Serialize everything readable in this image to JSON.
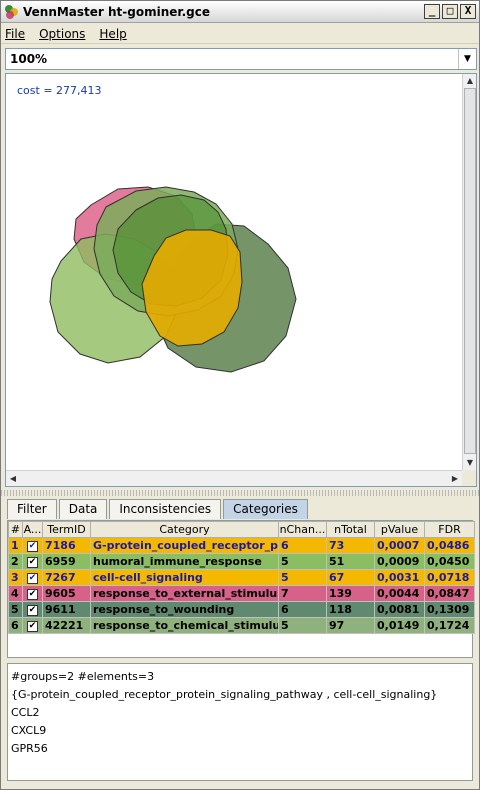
{
  "window": {
    "title": "VennMaster ht-gominer.gce",
    "controls": {
      "minimize": "_",
      "maximize": "□",
      "close": "X"
    }
  },
  "menu": [
    {
      "label": "File"
    },
    {
      "label": "Options"
    },
    {
      "label": "Help"
    }
  ],
  "zoom": {
    "value": "100%"
  },
  "canvas": {
    "cost_label": "cost = 277,413",
    "circle_colors": [
      "#d84f7b",
      "#6e8f61",
      "#8ebc5e",
      "#7cab5a",
      "#4a8a2c",
      "#e6ab00"
    ]
  },
  "tabs": [
    {
      "label": "Filter",
      "active": false
    },
    {
      "label": "Data",
      "active": false
    },
    {
      "label": "Inconsistencies",
      "active": false
    },
    {
      "label": "Categories",
      "active": true
    }
  ],
  "table": {
    "headers": [
      "#",
      "A...",
      "TermID",
      "Category",
      "nChan...",
      "nTotal",
      "pValue",
      "FDR"
    ],
    "rows": [
      {
        "num": "1",
        "checked": "✔",
        "term": "7186",
        "category": "G-protein_coupled_receptor_pr...",
        "nchan": "6",
        "ntotal": "73",
        "pvalue": "0,0007",
        "fdr": "0,0486",
        "bg": "#f5b800",
        "fg": "#1a1aa8"
      },
      {
        "num": "2",
        "checked": "✔",
        "term": "6959",
        "category": "humoral_immune_response",
        "nchan": "5",
        "ntotal": "51",
        "pvalue": "0,0009",
        "fdr": "0,0450",
        "bg": "#8bbd62",
        "fg": "#000000"
      },
      {
        "num": "3",
        "checked": "✔",
        "term": "7267",
        "category": "cell-cell_signaling",
        "nchan": "5",
        "ntotal": "67",
        "pvalue": "0,0031",
        "fdr": "0,0718",
        "bg": "#f5b800",
        "fg": "#1a1aa8"
      },
      {
        "num": "4",
        "checked": "✔",
        "term": "9605",
        "category": "response_to_external_stimulus",
        "nchan": "7",
        "ntotal": "139",
        "pvalue": "0,0044",
        "fdr": "0,0847",
        "bg": "#d76289",
        "fg": "#000000"
      },
      {
        "num": "5",
        "checked": "✔",
        "term": "9611",
        "category": "response_to_wounding",
        "nchan": "6",
        "ntotal": "118",
        "pvalue": "0,0081",
        "fdr": "0,1309",
        "bg": "#5f8a6f",
        "fg": "#000000"
      },
      {
        "num": "6",
        "checked": "✔",
        "term": "42221",
        "category": "response_to_chemical_stimulus",
        "nchan": "5",
        "ntotal": "97",
        "pvalue": "0,0149",
        "fdr": "0,1724",
        "bg": "#8fb17e",
        "fg": "#000000"
      }
    ]
  },
  "output": {
    "lines": [
      "#groups=2  #elements=3",
      "{G-protein_coupled_receptor_protein_signaling_pathway , cell-cell_signaling}",
      "CCL2",
      "CXCL9",
      "GPR56"
    ]
  }
}
